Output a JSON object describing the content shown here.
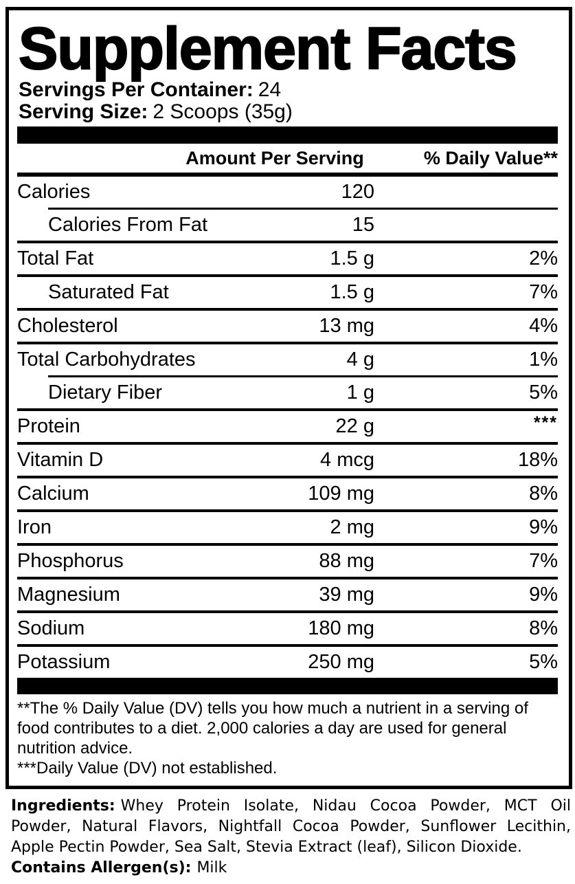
{
  "label": {
    "title": "Supplement Facts",
    "servings_per_container_label": "Servings Per Container:",
    "servings_per_container_value": "24",
    "serving_size_label": "Serving Size:",
    "serving_size_value": "2 Scoops (35g)",
    "columns": {
      "amount": "Amount Per Serving",
      "daily_value": "% Daily Value**"
    },
    "rows": [
      {
        "name": "Calories",
        "amount": "120",
        "dv": "",
        "indent": false,
        "sep": "none"
      },
      {
        "name": "Calories From Fat",
        "amount": "15",
        "dv": "",
        "indent": true,
        "sep": "indent"
      },
      {
        "name": "Total Fat",
        "amount": "1.5 g",
        "dv": "2%",
        "indent": false,
        "sep": "full"
      },
      {
        "name": "Saturated Fat",
        "amount": "1.5 g",
        "dv": "7%",
        "indent": true,
        "sep": "full"
      },
      {
        "name": "Cholesterol",
        "amount": "13 mg",
        "dv": "4%",
        "indent": false,
        "sep": "full"
      },
      {
        "name": "Total Carbohydrates",
        "amount": "4 g",
        "dv": "1%",
        "indent": false,
        "sep": "full"
      },
      {
        "name": "Dietary Fiber",
        "amount": "1 g",
        "dv": "5%",
        "indent": true,
        "sep": "indent"
      },
      {
        "name": "Protein",
        "amount": "22 g",
        "dv": "***",
        "indent": false,
        "sep": "full"
      },
      {
        "name": "Vitamin D",
        "amount": "4 mcg",
        "dv": "18%",
        "indent": false,
        "sep": "full"
      },
      {
        "name": "Calcium",
        "amount": "109 mg",
        "dv": "8%",
        "indent": false,
        "sep": "full"
      },
      {
        "name": "Iron",
        "amount": "2 mg",
        "dv": "9%",
        "indent": false,
        "sep": "full"
      },
      {
        "name": "Phosphorus",
        "amount": "88 mg",
        "dv": "7%",
        "indent": false,
        "sep": "full"
      },
      {
        "name": "Magnesium",
        "amount": "39 mg",
        "dv": "9%",
        "indent": false,
        "sep": "full"
      },
      {
        "name": "Sodium",
        "amount": "180 mg",
        "dv": "8%",
        "indent": false,
        "sep": "full"
      },
      {
        "name": "Potassium",
        "amount": "250 mg",
        "dv": "5%",
        "indent": false,
        "sep": "full"
      }
    ],
    "footnotes": [
      "**The % Daily Value (DV) tells you how much a nutrient in a serving of food contributes to a diet. 2,000 calories a day are used for general nutrition advice.",
      "***Daily Value (DV) not established."
    ]
  },
  "ingredients": {
    "label": "Ingredients:",
    "value": "Whey Protein Isolate, Nidau Cocoa Powder, MCT Oil Powder, Natural Flavors, Nightfall Cocoa Powder, Sunflower Lecithin, Apple Pectin Powder, Sea Salt, Stevia Extract (leaf), Silicon Dioxide.",
    "allergen_label": "Contains Allergen(s):",
    "allergen_value": "Milk"
  },
  "colors": {
    "text": "#000000",
    "background": "#ffffff"
  }
}
